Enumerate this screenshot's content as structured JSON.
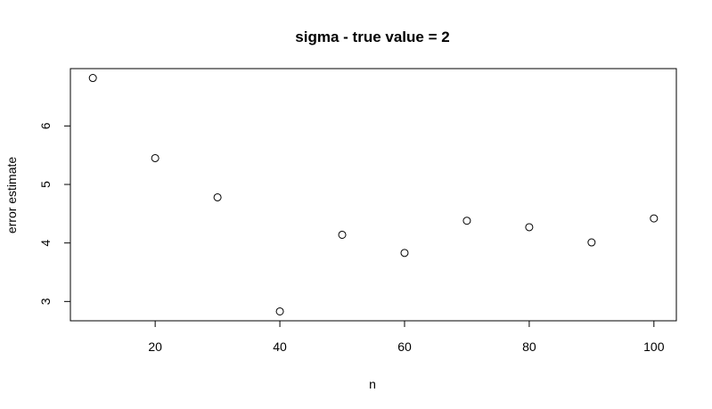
{
  "chart_data": {
    "type": "scatter",
    "title": "sigma - true value = 2",
    "xlabel": "n",
    "ylabel": "error estimate",
    "x": [
      10,
      20,
      30,
      40,
      50,
      60,
      70,
      80,
      90,
      100
    ],
    "y": [
      6.82,
      5.45,
      4.78,
      2.83,
      4.14,
      3.83,
      4.38,
      4.27,
      4.01,
      4.42
    ],
    "xlim": [
      6.4,
      103.6
    ],
    "ylim": [
      2.67,
      6.98
    ],
    "xticks": [
      20,
      40,
      60,
      80,
      100
    ],
    "yticks": [
      3,
      4,
      5,
      6
    ],
    "grid": false,
    "legend": "none",
    "marker": "open-circle",
    "color": "#000000"
  }
}
